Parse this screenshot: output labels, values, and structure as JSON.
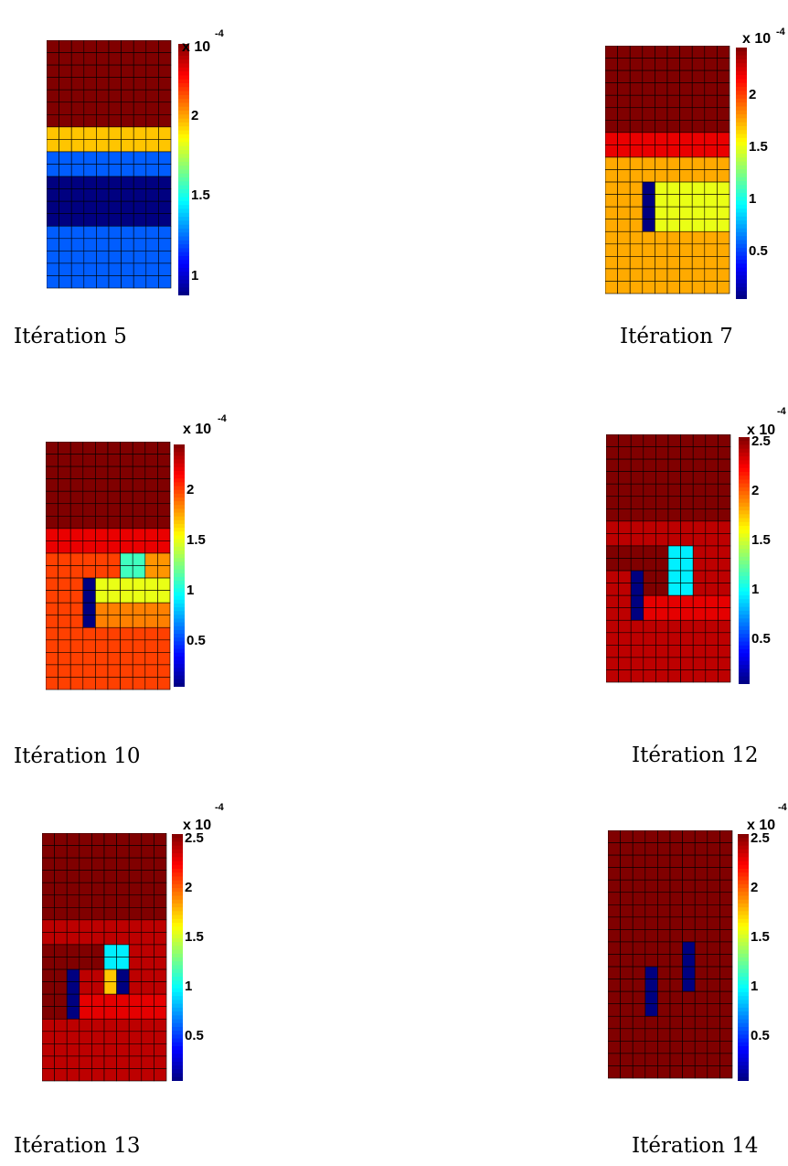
{
  "chart_data": [
    {
      "type": "heatmap",
      "caption": "Itération 5",
      "multiplier": "x 10",
      "exponent": "-4",
      "clim": [
        0.88,
        2.45
      ],
      "ticks": [
        "1",
        "1.5",
        "2"
      ],
      "tick_values": [
        1,
        1.5,
        2
      ],
      "rows": 20,
      "cols": 10,
      "regions": [
        {
          "rows": [
            0,
            7
          ],
          "cols": [
            0,
            9
          ],
          "value": 2.45
        },
        {
          "rows": [
            7,
            8
          ],
          "cols": [
            0,
            9
          ],
          "value": 1.95
        },
        {
          "rows": [
            9,
            10
          ],
          "cols": [
            0,
            9
          ],
          "value": 1.22
        },
        {
          "rows": [
            11,
            14
          ],
          "cols": [
            0,
            9
          ],
          "value": 0.88
        },
        {
          "rows": [
            15,
            19
          ],
          "cols": [
            0,
            9
          ],
          "value": 1.22
        }
      ]
    },
    {
      "type": "heatmap",
      "caption": "Itération 7",
      "multiplier": "x 10",
      "exponent": "-4",
      "clim": [
        0.05,
        2.45
      ],
      "ticks": [
        "0.5",
        "1",
        "1.5",
        "2"
      ],
      "tick_values": [
        0.5,
        1,
        1.5,
        2
      ],
      "rows": 20,
      "cols": 10,
      "regions": [
        {
          "rows": [
            0,
            6
          ],
          "cols": [
            0,
            9
          ],
          "value": 2.45
        },
        {
          "rows": [
            7,
            8
          ],
          "cols": [
            0,
            9
          ],
          "value": 2.2
        },
        {
          "rows": [
            9,
            10
          ],
          "cols": [
            0,
            9
          ],
          "value": 1.75
        },
        {
          "rows": [
            11,
            14
          ],
          "cols": [
            0,
            2
          ],
          "value": 1.75
        },
        {
          "rows": [
            11,
            14
          ],
          "cols": [
            3,
            3
          ],
          "value": 0.05
        },
        {
          "rows": [
            11,
            14
          ],
          "cols": [
            4,
            9
          ],
          "value": 1.5
        },
        {
          "rows": [
            15,
            19
          ],
          "cols": [
            0,
            9
          ],
          "value": 1.75
        }
      ]
    },
    {
      "type": "heatmap",
      "caption": "Itération 10",
      "multiplier": "x 10",
      "exponent": "-4",
      "clim": [
        0.05,
        2.45
      ],
      "ticks": [
        "0.5",
        "1",
        "1.5",
        "2"
      ],
      "tick_values": [
        0.5,
        1,
        1.5,
        2
      ],
      "rows": 20,
      "cols": 10,
      "regions": [
        {
          "rows": [
            0,
            6
          ],
          "cols": [
            0,
            9
          ],
          "value": 2.45
        },
        {
          "rows": [
            7,
            8
          ],
          "cols": [
            0,
            9
          ],
          "value": 2.2
        },
        {
          "rows": [
            9,
            10
          ],
          "cols": [
            0,
            5
          ],
          "value": 2.0
        },
        {
          "rows": [
            9,
            10
          ],
          "cols": [
            6,
            7
          ],
          "value": 1.1
        },
        {
          "rows": [
            9,
            10
          ],
          "cols": [
            8,
            9
          ],
          "value": 1.8
        },
        {
          "rows": [
            11,
            12
          ],
          "cols": [
            0,
            2
          ],
          "value": 2.0
        },
        {
          "rows": [
            11,
            14
          ],
          "cols": [
            3,
            3
          ],
          "value": 0.05
        },
        {
          "rows": [
            11,
            12
          ],
          "cols": [
            4,
            9
          ],
          "value": 1.5
        },
        {
          "rows": [
            13,
            14
          ],
          "cols": [
            0,
            2
          ],
          "value": 2.0
        },
        {
          "rows": [
            13,
            14
          ],
          "cols": [
            4,
            9
          ],
          "value": 1.85
        },
        {
          "rows": [
            15,
            19
          ],
          "cols": [
            0,
            9
          ],
          "value": 2.0
        }
      ]
    },
    {
      "type": "heatmap",
      "caption": "Itération 12",
      "multiplier": "x 10",
      "exponent": "-4",
      "clim": [
        0.05,
        2.55
      ],
      "ticks": [
        "0.5",
        "1",
        "1.5",
        "2",
        "2.5"
      ],
      "tick_values": [
        0.5,
        1,
        1.5,
        2,
        2.5
      ],
      "rows": 20,
      "cols": 10,
      "regions": [
        {
          "rows": [
            0,
            6
          ],
          "cols": [
            0,
            9
          ],
          "value": 2.55
        },
        {
          "rows": [
            7,
            8
          ],
          "cols": [
            0,
            9
          ],
          "value": 2.4
        },
        {
          "rows": [
            9,
            10
          ],
          "cols": [
            0,
            4
          ],
          "value": 2.55
        },
        {
          "rows": [
            9,
            12
          ],
          "cols": [
            5,
            6
          ],
          "value": 0.95
        },
        {
          "rows": [
            9,
            10
          ],
          "cols": [
            7,
            9
          ],
          "value": 2.4
        },
        {
          "rows": [
            11,
            14
          ],
          "cols": [
            0,
            1
          ],
          "value": 2.4
        },
        {
          "rows": [
            11,
            14
          ],
          "cols": [
            2,
            2
          ],
          "value": 0.05
        },
        {
          "rows": [
            11,
            12
          ],
          "cols": [
            3,
            4
          ],
          "value": 2.55
        },
        {
          "rows": [
            11,
            12
          ],
          "cols": [
            7,
            9
          ],
          "value": 2.4
        },
        {
          "rows": [
            13,
            14
          ],
          "cols": [
            3,
            9
          ],
          "value": 2.3
        },
        {
          "rows": [
            15,
            19
          ],
          "cols": [
            0,
            9
          ],
          "value": 2.4
        }
      ]
    },
    {
      "type": "heatmap",
      "caption": "Itération 13",
      "multiplier": "x 10",
      "exponent": "-4",
      "clim": [
        0.05,
        2.55
      ],
      "ticks": [
        "0.5",
        "1",
        "1.5",
        "2",
        "2.5"
      ],
      "tick_values": [
        0.5,
        1,
        1.5,
        2,
        2.5
      ],
      "rows": 20,
      "cols": 10,
      "regions": [
        {
          "rows": [
            0,
            6
          ],
          "cols": [
            0,
            9
          ],
          "value": 2.55
        },
        {
          "rows": [
            7,
            8
          ],
          "cols": [
            0,
            9
          ],
          "value": 2.4
        },
        {
          "rows": [
            9,
            10
          ],
          "cols": [
            0,
            4
          ],
          "value": 2.55
        },
        {
          "rows": [
            9,
            10
          ],
          "cols": [
            5,
            6
          ],
          "value": 0.95
        },
        {
          "rows": [
            9,
            10
          ],
          "cols": [
            7,
            9
          ],
          "value": 2.4
        },
        {
          "rows": [
            11,
            14
          ],
          "cols": [
            0,
            1
          ],
          "value": 2.55
        },
        {
          "rows": [
            11,
            14
          ],
          "cols": [
            2,
            2
          ],
          "value": 0.05
        },
        {
          "rows": [
            11,
            12
          ],
          "cols": [
            3,
            4
          ],
          "value": 2.4
        },
        {
          "rows": [
            11,
            12
          ],
          "cols": [
            5,
            5
          ],
          "value": 1.75
        },
        {
          "rows": [
            11,
            12
          ],
          "cols": [
            6,
            6
          ],
          "value": 0.05
        },
        {
          "rows": [
            11,
            12
          ],
          "cols": [
            7,
            9
          ],
          "value": 2.4
        },
        {
          "rows": [
            13,
            14
          ],
          "cols": [
            3,
            9
          ],
          "value": 2.3
        },
        {
          "rows": [
            15,
            19
          ],
          "cols": [
            0,
            9
          ],
          "value": 2.4
        }
      ]
    },
    {
      "type": "heatmap",
      "caption": "Itération 14",
      "multiplier": "x 10",
      "exponent": "-4",
      "clim": [
        0.05,
        2.55
      ],
      "ticks": [
        "0.5",
        "1",
        "1.5",
        "2",
        "2.5"
      ],
      "tick_values": [
        0.5,
        1,
        1.5,
        2,
        2.5
      ],
      "rows": 20,
      "cols": 10,
      "regions": [
        {
          "rows": [
            0,
            19
          ],
          "cols": [
            0,
            9
          ],
          "value": 2.55
        },
        {
          "rows": [
            11,
            14
          ],
          "cols": [
            3,
            3
          ],
          "value": 0.05
        },
        {
          "rows": [
            9,
            12
          ],
          "cols": [
            6,
            6
          ],
          "value": 0.05
        }
      ]
    }
  ]
}
